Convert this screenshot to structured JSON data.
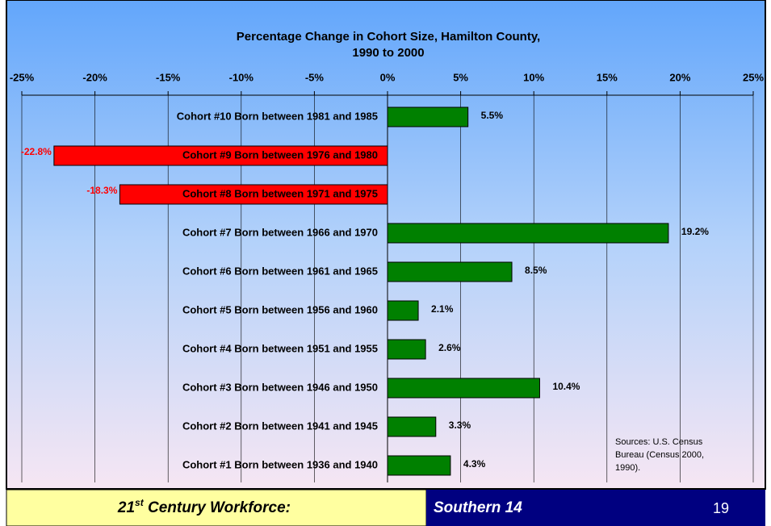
{
  "chart_data": {
    "type": "bar",
    "orientation": "horizontal",
    "title": [
      "Percentage Change in Cohort Size, Hamilton County,",
      "1990 to 2000"
    ],
    "categories": [
      "Cohort #10 Born between 1981 and 1985",
      "Cohort #9 Born between 1976 and 1980",
      "Cohort #8 Born between 1971 and 1975",
      "Cohort #7 Born between 1966 and 1970",
      "Cohort #6 Born between 1961 and 1965",
      "Cohort #5 Born between 1956 and 1960",
      "Cohort #4 Born between 1951 and 1955",
      "Cohort #3 Born between 1946 and 1950",
      "Cohort #2 Born between 1941 and 1945",
      "Cohort #1 Born between 1936 and 1940"
    ],
    "values": [
      5.5,
      -22.8,
      -18.3,
      19.2,
      8.5,
      2.1,
      2.6,
      10.4,
      3.3,
      4.3
    ],
    "value_labels": [
      "5.5%",
      "-22.8%",
      "-18.3%",
      "19.2%",
      "8.5%",
      "2.1%",
      "2.6%",
      "10.4%",
      "3.3%",
      "4.3%"
    ],
    "positive_color": "#008000",
    "negative_color": "#ff0000",
    "xlim": [
      -25,
      25
    ],
    "xticks": [
      {
        "value": -25,
        "label": "-25%"
      },
      {
        "value": -20,
        "label": "-20%"
      },
      {
        "value": -15,
        "label": "-15%"
      },
      {
        "value": -10,
        "label": "-10%"
      },
      {
        "value": -5,
        "label": "-5%"
      },
      {
        "value": 0,
        "label": "0%"
      },
      {
        "value": 5,
        "label": "5%"
      },
      {
        "value": 10,
        "label": "10%"
      },
      {
        "value": 15,
        "label": "15%"
      },
      {
        "value": 20,
        "label": "20%"
      },
      {
        "value": 25,
        "label": "25%"
      }
    ],
    "grid": true,
    "annotation": [
      "Sources: U.S. Census",
      "Bureau (Census 2000,",
      "1990)."
    ]
  },
  "footer": {
    "left": "21",
    "left_sup": "st",
    "left_rest": " Century Workforce:",
    "center": "Southern 14",
    "page": "19"
  }
}
